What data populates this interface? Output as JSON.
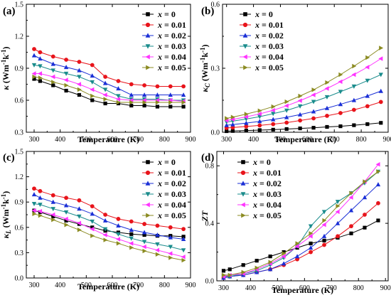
{
  "figure": {
    "title": ""
  },
  "chart_data": [
    {
      "id": "a",
      "type": "line",
      "panel_label": "(a)",
      "ylabel_main": "κ",
      "ylabel_unit": "(Wm",
      "ylabel_sup1": "-1",
      "ylabel_mid": "k",
      "ylabel_sup2": "-1",
      "ylabel_end": ")",
      "xlabel": "Temperature (K)",
      "xlim": [
        270,
        900
      ],
      "ylim": [
        0.3,
        1.5
      ],
      "xticks": [
        300,
        400,
        500,
        600,
        700,
        800,
        900
      ],
      "yticks": [
        0.3,
        0.6,
        0.9,
        1.2,
        1.5
      ],
      "ytick_labels": [
        "0.3",
        "0.6",
        "0.9",
        "1.2",
        "1.5"
      ],
      "legend_position": "top-right",
      "x": [
        300,
        323,
        373,
        423,
        473,
        523,
        573,
        623,
        673,
        723,
        773,
        823,
        873
      ],
      "series": [
        {
          "name": "x = 0",
          "values": [
            0.8,
            0.78,
            0.74,
            0.69,
            0.65,
            0.6,
            0.57,
            0.57,
            0.55,
            0.55,
            0.54,
            0.54,
            0.54
          ]
        },
        {
          "name": "x = 0.01",
          "values": [
            1.08,
            1.05,
            1.01,
            0.98,
            0.96,
            0.93,
            0.82,
            0.78,
            0.75,
            0.74,
            0.73,
            0.73,
            0.73
          ]
        },
        {
          "name": "x = 0.02",
          "values": [
            1.02,
            0.99,
            0.94,
            0.91,
            0.88,
            0.83,
            0.76,
            0.71,
            0.65,
            0.65,
            0.65,
            0.65,
            0.65
          ]
        },
        {
          "name": "x = 0.03",
          "values": [
            0.93,
            0.92,
            0.88,
            0.85,
            0.82,
            0.77,
            0.7,
            0.64,
            0.61,
            0.61,
            0.61,
            0.6,
            0.6
          ]
        },
        {
          "name": "x = 0.04",
          "values": [
            0.85,
            0.85,
            0.82,
            0.79,
            0.75,
            0.7,
            0.65,
            0.61,
            0.6,
            0.6,
            0.6,
            0.6,
            0.59
          ]
        },
        {
          "name": "x = 0.05",
          "values": [
            0.82,
            0.81,
            0.77,
            0.74,
            0.7,
            0.64,
            0.61,
            0.58,
            0.58,
            0.58,
            0.58,
            0.58,
            0.58
          ]
        }
      ]
    },
    {
      "id": "b",
      "type": "line",
      "panel_label": "(b)",
      "ylabel_main": "κ",
      "ylabel_sub": "C",
      "ylabel_unit": "(Wm",
      "ylabel_sup1": "-1",
      "ylabel_mid": "k",
      "ylabel_sup2": "-1",
      "ylabel_end": ")",
      "xlabel": "Temperature (K)",
      "xlim": [
        285,
        900
      ],
      "ylim": [
        0.0,
        0.6
      ],
      "xticks": [
        300,
        400,
        500,
        600,
        700,
        800,
        900
      ],
      "yticks": [
        0.0,
        0.3,
        0.6
      ],
      "ytick_labels": [
        "0.0",
        "0.3",
        "0.6"
      ],
      "legend_position": "top-left",
      "x": [
        300,
        323,
        373,
        423,
        473,
        523,
        573,
        623,
        673,
        723,
        773,
        823,
        873
      ],
      "series": [
        {
          "name": "x = 0",
          "values": [
            0.005,
            0.006,
            0.008,
            0.01,
            0.012,
            0.015,
            0.018,
            0.021,
            0.025,
            0.028,
            0.033,
            0.038,
            0.044
          ]
        },
        {
          "name": "x = 0.01",
          "values": [
            0.02,
            0.022,
            0.027,
            0.032,
            0.038,
            0.045,
            0.055,
            0.065,
            0.077,
            0.09,
            0.105,
            0.122,
            0.142
          ]
        },
        {
          "name": "x = 0.02",
          "values": [
            0.033,
            0.036,
            0.043,
            0.051,
            0.06,
            0.07,
            0.083,
            0.097,
            0.113,
            0.131,
            0.15,
            0.17,
            0.193
          ]
        },
        {
          "name": "x = 0.03",
          "values": [
            0.048,
            0.052,
            0.062,
            0.073,
            0.087,
            0.102,
            0.122,
            0.143,
            0.165,
            0.19,
            0.215,
            0.242,
            0.27
          ]
        },
        {
          "name": "x = 0.04",
          "values": [
            0.055,
            0.06,
            0.072,
            0.086,
            0.103,
            0.124,
            0.148,
            0.175,
            0.205,
            0.237,
            0.27,
            0.305,
            0.345
          ]
        },
        {
          "name": "x = 0.05",
          "values": [
            0.065,
            0.071,
            0.085,
            0.101,
            0.12,
            0.143,
            0.17,
            0.199,
            0.233,
            0.27,
            0.31,
            0.35,
            0.395
          ]
        }
      ]
    },
    {
      "id": "c",
      "type": "line",
      "panel_label": "(c)",
      "ylabel_main": "κ",
      "ylabel_sub": "L",
      "ylabel_unit": "(Wm",
      "ylabel_sup1": "-1",
      "ylabel_mid": "k",
      "ylabel_sup2": "-1",
      "ylabel_end": ")",
      "xlabel": "Temperature (K)",
      "xlim": [
        270,
        900
      ],
      "ylim": [
        0.0,
        1.5
      ],
      "xticks": [
        300,
        400,
        500,
        600,
        700,
        800,
        900
      ],
      "yticks": [
        0.0,
        0.3,
        0.6,
        0.9,
        1.2,
        1.5
      ],
      "ytick_labels": [
        "0.0",
        "0.3",
        "0.6",
        "0.9",
        "1.2",
        "1.5"
      ],
      "legend_position": "top-right",
      "x": [
        300,
        323,
        373,
        423,
        473,
        523,
        573,
        623,
        673,
        723,
        773,
        823,
        873
      ],
      "series": [
        {
          "name": "x = 0",
          "values": [
            0.8,
            0.78,
            0.73,
            0.68,
            0.64,
            0.6,
            0.56,
            0.54,
            0.52,
            0.51,
            0.5,
            0.5,
            0.49
          ]
        },
        {
          "name": "x = 0.01",
          "values": [
            1.06,
            1.03,
            0.98,
            0.95,
            0.92,
            0.85,
            0.75,
            0.7,
            0.67,
            0.64,
            0.62,
            0.6,
            0.58
          ]
        },
        {
          "name": "x = 0.02",
          "values": [
            0.99,
            0.95,
            0.9,
            0.86,
            0.82,
            0.76,
            0.68,
            0.62,
            0.57,
            0.54,
            0.51,
            0.48,
            0.46
          ]
        },
        {
          "name": "x = 0.03",
          "values": [
            0.88,
            0.87,
            0.82,
            0.78,
            0.73,
            0.67,
            0.58,
            0.52,
            0.47,
            0.43,
            0.4,
            0.37,
            0.33
          ]
        },
        {
          "name": "x = 0.04",
          "values": [
            0.8,
            0.79,
            0.75,
            0.7,
            0.65,
            0.58,
            0.51,
            0.46,
            0.41,
            0.37,
            0.33,
            0.29,
            0.25
          ]
        },
        {
          "name": "x = 0.05",
          "values": [
            0.76,
            0.74,
            0.69,
            0.63,
            0.57,
            0.5,
            0.45,
            0.41,
            0.36,
            0.32,
            0.28,
            0.24,
            0.21
          ]
        }
      ]
    },
    {
      "id": "d",
      "type": "line",
      "panel_label": "(d)",
      "ylabel_main": "ZT",
      "xlabel": "Temperature (K)",
      "xlim": [
        275,
        910
      ],
      "ylim": [
        0.0,
        0.9
      ],
      "xticks": [
        300,
        400,
        500,
        600,
        700,
        800,
        900
      ],
      "yticks": [
        0.0,
        0.4,
        0.8
      ],
      "ytick_labels": [
        "0.0",
        "0.4",
        "0.8"
      ],
      "legend_position": "top-left",
      "x": [
        300,
        323,
        373,
        423,
        473,
        523,
        573,
        623,
        673,
        723,
        773,
        823,
        873
      ],
      "series": [
        {
          "name": "x = 0",
          "values": [
            0.07,
            0.08,
            0.11,
            0.14,
            0.17,
            0.2,
            0.23,
            0.26,
            0.28,
            0.3,
            0.33,
            0.37,
            0.42
          ]
        },
        {
          "name": "x = 0.01",
          "values": [
            0.02,
            0.03,
            0.04,
            0.06,
            0.08,
            0.11,
            0.15,
            0.2,
            0.25,
            0.31,
            0.38,
            0.46,
            0.54
          ]
        },
        {
          "name": "x = 0.02",
          "values": [
            0.02,
            0.03,
            0.04,
            0.06,
            0.08,
            0.12,
            0.17,
            0.23,
            0.31,
            0.4,
            0.49,
            0.58,
            0.67
          ]
        },
        {
          "name": "x = 0.03",
          "values": [
            0.03,
            0.03,
            0.05,
            0.07,
            0.11,
            0.16,
            0.24,
            0.38,
            0.48,
            0.55,
            0.61,
            0.68,
            0.76
          ]
        },
        {
          "name": "x = 0.04",
          "values": [
            0.03,
            0.04,
            0.05,
            0.08,
            0.12,
            0.17,
            0.24,
            0.31,
            0.39,
            0.48,
            0.58,
            0.69,
            0.81
          ]
        },
        {
          "name": "x = 0.05",
          "values": [
            0.04,
            0.04,
            0.06,
            0.09,
            0.13,
            0.19,
            0.26,
            0.33,
            0.42,
            0.52,
            0.61,
            0.69,
            0.76
          ]
        }
      ]
    }
  ],
  "series_style": [
    {
      "color": "#000000",
      "marker": "square"
    },
    {
      "color": "#e8141b",
      "marker": "circle"
    },
    {
      "color": "#1a2fd6",
      "marker": "triangle-up"
    },
    {
      "color": "#1a8c8c",
      "marker": "triangle-down"
    },
    {
      "color": "#ff33ff",
      "marker": "triangle-left"
    },
    {
      "color": "#8b8b22",
      "marker": "triangle-right"
    }
  ]
}
